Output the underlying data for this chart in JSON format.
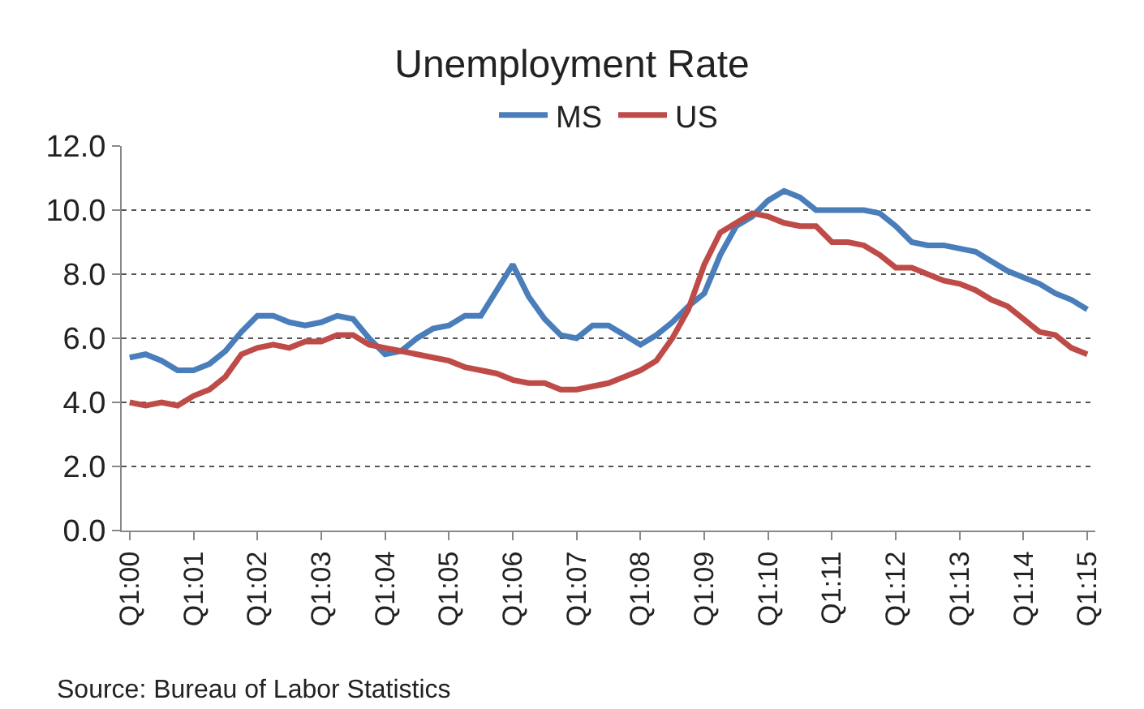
{
  "chart_data": {
    "type": "line",
    "title": "Unemployment Rate",
    "categories": [
      "Q1:00",
      null,
      null,
      null,
      "Q1:01",
      null,
      null,
      null,
      "Q1:02",
      null,
      null,
      null,
      "Q1:03",
      null,
      null,
      null,
      "Q1:04",
      null,
      null,
      null,
      "Q1:05",
      null,
      null,
      null,
      "Q1:06",
      null,
      null,
      null,
      "Q1:07",
      null,
      null,
      null,
      "Q1:08",
      null,
      null,
      null,
      "Q1:09",
      null,
      null,
      null,
      "Q1:10",
      null,
      null,
      null,
      "Q1:11",
      null,
      null,
      null,
      "Q1:12",
      null,
      null,
      null,
      "Q1:13",
      null,
      null,
      null,
      "Q1:14",
      null,
      null,
      null,
      "Q1:15"
    ],
    "series": [
      {
        "name": "MS",
        "color": "#4a7ebb",
        "values": [
          5.4,
          5.5,
          5.3,
          5.0,
          5.0,
          5.2,
          5.6,
          6.2,
          6.7,
          6.7,
          6.5,
          6.4,
          6.5,
          6.7,
          6.6,
          6.0,
          5.5,
          5.6,
          6.0,
          6.3,
          6.4,
          6.7,
          6.7,
          7.5,
          8.3,
          7.3,
          6.6,
          6.1,
          6.0,
          6.4,
          6.4,
          6.1,
          5.8,
          6.1,
          6.5,
          7.0,
          7.4,
          8.6,
          9.5,
          9.8,
          10.3,
          10.6,
          10.4,
          10.0,
          10.0,
          10.0,
          10.0,
          9.9,
          9.5,
          9.0,
          8.9,
          8.9,
          8.8,
          8.7,
          8.4,
          8.1,
          7.9,
          7.7,
          7.4,
          7.2,
          6.9
        ]
      },
      {
        "name": "US",
        "color": "#be4b48",
        "values": [
          4.0,
          3.9,
          4.0,
          3.9,
          4.2,
          4.4,
          4.8,
          5.5,
          5.7,
          5.8,
          5.7,
          5.9,
          5.9,
          6.1,
          6.1,
          5.8,
          5.7,
          5.6,
          5.5,
          5.4,
          5.3,
          5.1,
          5.0,
          4.9,
          4.7,
          4.6,
          4.6,
          4.4,
          4.4,
          4.5,
          4.6,
          4.8,
          5.0,
          5.3,
          6.0,
          6.9,
          8.3,
          9.3,
          9.6,
          9.9,
          9.8,
          9.6,
          9.5,
          9.5,
          9.0,
          9.0,
          8.9,
          8.6,
          8.2,
          8.2,
          8.0,
          7.8,
          7.7,
          7.5,
          7.2,
          7.0,
          6.6,
          6.2,
          6.1,
          5.7,
          5.5
        ]
      }
    ],
    "ylim": [
      0,
      12
    ],
    "yticks": [
      {
        "value": 0,
        "label": "0.0"
      },
      {
        "value": 2,
        "label": "2.0"
      },
      {
        "value": 4,
        "label": "4.0"
      },
      {
        "value": 6,
        "label": "6.0"
      },
      {
        "value": 8,
        "label": "8.0"
      },
      {
        "value": 10,
        "label": "10.0"
      },
      {
        "value": 12,
        "label": "12.0"
      }
    ],
    "grid": "y",
    "legend": "top",
    "marker": "none",
    "line_style": "solid",
    "annotations": [
      "Source: Bureau of Labor Statistics"
    ]
  }
}
